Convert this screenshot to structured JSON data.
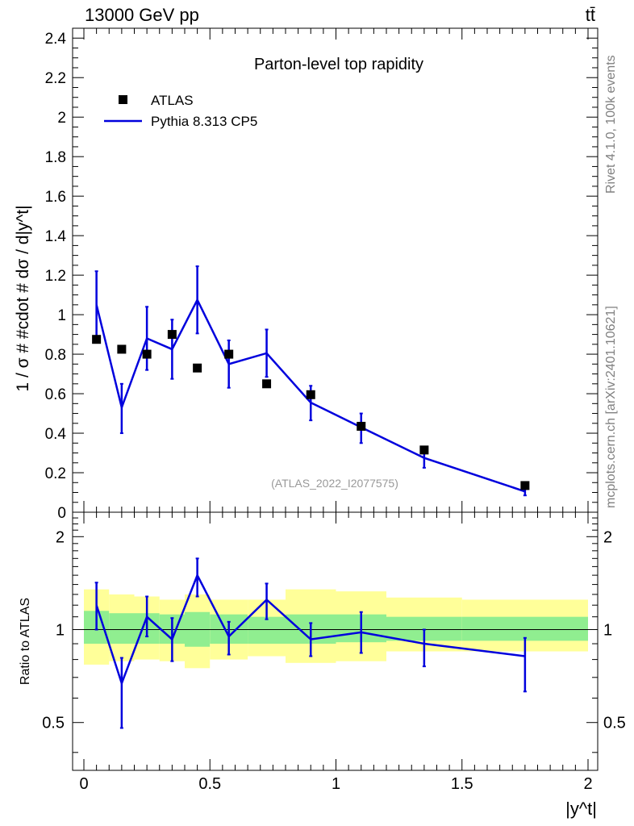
{
  "header": {
    "energy_label": "13000 GeV pp",
    "process_label": "tt̄"
  },
  "side_labels": {
    "rivet": "Rivet 4.1.0,  100k events",
    "mcplots": "mcplots.cern.ch [arXiv:2401.10621]"
  },
  "colors": {
    "mc_line": "#0000dd",
    "data_marker": "#000000",
    "band_inner": "#90ee90",
    "band_outer": "#ffff99"
  },
  "chart_data": [
    {
      "type": "line",
      "title": "Parton-level top rapidity",
      "ylabel": "1 / σ # #cdot # dσ / d|y^t|",
      "xlabel": "|y^t|",
      "watermark": "(ATLAS_2022_I2077575)",
      "xlim": [
        0,
        2
      ],
      "ylim": [
        0,
        2.45
      ],
      "yticks": [
        "0",
        "0.2",
        "0.4",
        "0.6",
        "0.8",
        "1",
        "1.2",
        "1.4",
        "1.6",
        "1.8",
        "2",
        "2.2",
        "2.4"
      ],
      "legend_position": "top-left",
      "series": [
        {
          "name": "ATLAS",
          "kind": "markers",
          "x": [
            0.05,
            0.15,
            0.25,
            0.35,
            0.45,
            0.575,
            0.725,
            0.9,
            1.1,
            1.35,
            1.75
          ],
          "values": [
            0.875,
            0.825,
            0.8,
            0.9,
            0.73,
            0.8,
            0.65,
            0.595,
            0.435,
            0.315,
            0.135
          ]
        },
        {
          "name": "Pythia 8.313 CP5",
          "kind": "line",
          "x": [
            0.05,
            0.15,
            0.25,
            0.35,
            0.45,
            0.575,
            0.725,
            0.9,
            1.1,
            1.35,
            1.75
          ],
          "values": [
            1.05,
            0.53,
            0.88,
            0.825,
            1.075,
            0.75,
            0.805,
            0.555,
            0.43,
            0.275,
            0.105
          ],
          "err_low": [
            0.17,
            0.13,
            0.16,
            0.15,
            0.17,
            0.12,
            0.12,
            0.09,
            0.08,
            0.05,
            0.02
          ],
          "err_high": [
            0.17,
            0.12,
            0.16,
            0.15,
            0.17,
            0.12,
            0.12,
            0.085,
            0.07,
            0.05,
            0.02
          ]
        }
      ]
    },
    {
      "type": "line",
      "ylabel": "Ratio to ATLAS",
      "xlabel": "|y^t|",
      "xlim": [
        0,
        2
      ],
      "ylim": [
        0.35,
        2.4
      ],
      "yscale": "log",
      "xticks": [
        "0",
        "0.5",
        "1",
        "1.5",
        "2"
      ],
      "yticks": [
        "0.5",
        "1",
        "2"
      ],
      "bins": [
        0,
        0.1,
        0.2,
        0.3,
        0.4,
        0.5,
        0.65,
        0.8,
        1.0,
        1.2,
        1.5,
        2.0
      ],
      "band_inner_low": [
        0.9,
        0.9,
        0.9,
        0.9,
        0.88,
        0.9,
        0.9,
        0.9,
        0.91,
        0.92,
        0.92
      ],
      "band_inner_high": [
        1.15,
        1.13,
        1.13,
        1.12,
        1.14,
        1.12,
        1.1,
        1.12,
        1.12,
        1.1,
        1.1
      ],
      "band_outer_low": [
        0.77,
        0.79,
        0.8,
        0.79,
        0.75,
        0.8,
        0.82,
        0.78,
        0.79,
        0.85,
        0.85
      ],
      "band_outer_high": [
        1.35,
        1.3,
        1.28,
        1.25,
        1.3,
        1.25,
        1.25,
        1.35,
        1.33,
        1.27,
        1.25
      ],
      "series": [
        {
          "name": "Pythia 8.313 CP5 / ATLAS",
          "x": [
            0.05,
            0.15,
            0.25,
            0.35,
            0.45,
            0.575,
            0.725,
            0.9,
            1.1,
            1.35,
            1.75
          ],
          "values": [
            1.2,
            0.67,
            1.1,
            0.93,
            1.5,
            0.95,
            1.25,
            0.93,
            0.98,
            0.9,
            0.82
          ],
          "err_low": [
            0.2,
            0.19,
            0.15,
            0.14,
            0.22,
            0.12,
            0.17,
            0.11,
            0.14,
            0.14,
            0.19
          ],
          "err_high": [
            0.22,
            0.14,
            0.18,
            0.16,
            0.2,
            0.11,
            0.16,
            0.12,
            0.16,
            0.1,
            0.12
          ]
        }
      ]
    }
  ]
}
